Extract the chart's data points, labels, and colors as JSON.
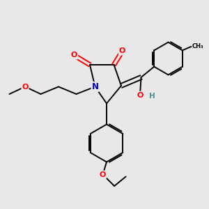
{
  "bg_color": "#e8e8e8",
  "atom_colors": {
    "C": "#000000",
    "N": "#0000cc",
    "O": "#ff0000",
    "H": "#4a9090"
  },
  "bond_color": "#000000",
  "figsize": [
    3.0,
    3.0
  ],
  "dpi": 100,
  "xlim": [
    0,
    10
  ],
  "ylim": [
    0,
    10
  ]
}
